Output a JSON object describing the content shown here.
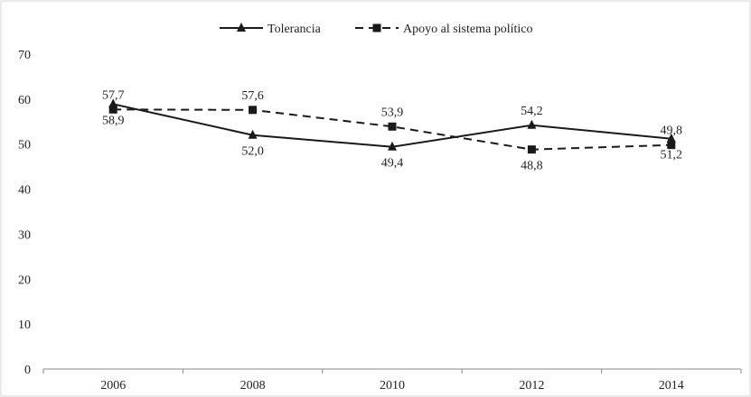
{
  "chart_data": {
    "type": "line",
    "categories": [
      "2006",
      "2008",
      "2010",
      "2012",
      "2014"
    ],
    "ylim": [
      0,
      70
    ],
    "yticks": [
      0,
      10,
      20,
      30,
      40,
      50,
      60,
      70
    ],
    "title": "",
    "xlabel": "",
    "ylabel": "",
    "grid": false,
    "legend_position": "top-center",
    "series": [
      {
        "name": "Tolerancia",
        "values": [
          58.9,
          52.0,
          49.4,
          54.2,
          51.2
        ],
        "labels": [
          "58,9",
          "52,0",
          "49,4",
          "54,2",
          "51,2"
        ],
        "style": "solid",
        "marker": "triangle",
        "label_positions": [
          "below",
          "below",
          "below",
          "above",
          "below"
        ]
      },
      {
        "name": "Apoyo al sistema político",
        "values": [
          57.7,
          57.6,
          53.9,
          48.8,
          49.8
        ],
        "labels": [
          "57,7",
          "57,6",
          "53,9",
          "48,8",
          "49,8"
        ],
        "style": "dashed",
        "marker": "square",
        "label_positions": [
          "above",
          "above",
          "above",
          "below",
          "above"
        ]
      }
    ],
    "colors": {
      "line": "#1a1a1a",
      "axis": "#8a8a8a",
      "frame": "#d6d6d6"
    }
  }
}
